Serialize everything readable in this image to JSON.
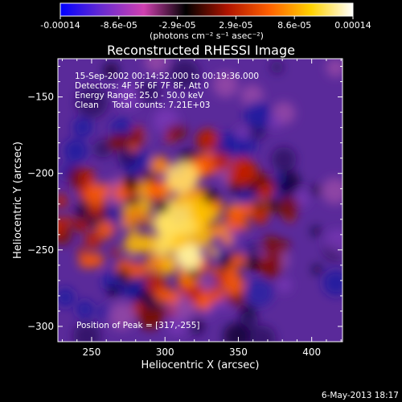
{
  "chart_data": {
    "type": "heatmap",
    "title": "Reconstructed RHESSI Image",
    "colorbar": {
      "ticks": [
        "-0.00014",
        "-8.6e-05",
        "-2.9e-05",
        "2.9e-05",
        "8.6e-05",
        "0.00014"
      ],
      "unit_label": "(photons cm⁻² s⁻¹ asec⁻²)",
      "range": [
        -0.00014,
        0.00014
      ],
      "stops": [
        "#0000ff",
        "#6a2bd0",
        "#d040b0",
        "#000000",
        "#b01400",
        "#ff6000",
        "#ffd200",
        "#ffffff"
      ]
    },
    "xlabel": "Heliocentric X (arcsec)",
    "ylabel": "Heliocentric Y (arcsec)",
    "xticks": [
      250,
      300,
      350,
      400
    ],
    "yticks": [
      -150,
      -200,
      -250,
      -300
    ],
    "xlim": [
      227,
      421
    ],
    "ylim": [
      -310,
      -125
    ],
    "info_lines": [
      "15-Sep-2002 00:14:52.000 to 00:19:36.000",
      "Detectors: 4F 5F 6F 7F 8F, Att 0",
      "Energy Range: 25.0 - 50.0 keV",
      "Clean     Total counts: 7.21E+03"
    ],
    "peak_label": "Position of Peak = [317,-255]",
    "peak": [
      317,
      -255
    ],
    "timestamp": "6-May-2013 18:17"
  }
}
